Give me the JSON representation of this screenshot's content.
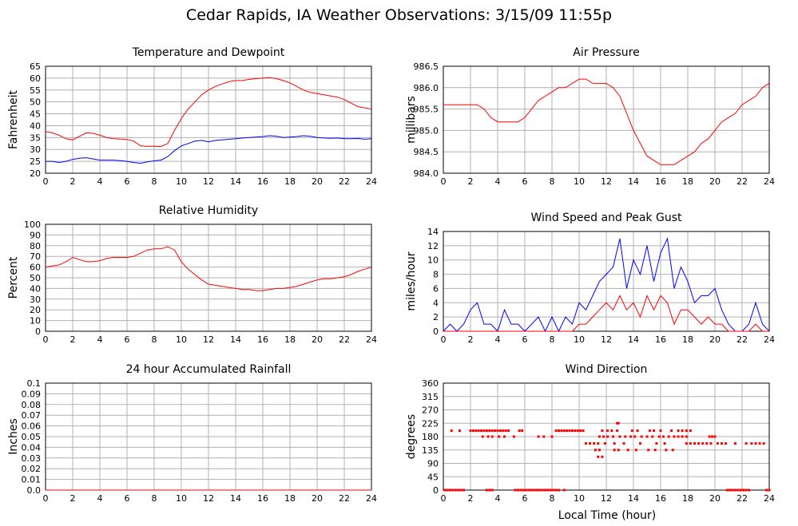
{
  "title": "Cedar Rapids, IA Weather Observations: 3/15/09 11:55p",
  "xlabel_bottom": "Local Time (hour)",
  "colors": {
    "red": "#ff0000",
    "blue": "#0000ff",
    "grid": "#b0b0b0",
    "frame": "#000000"
  },
  "chart_data": [
    {
      "type": "line",
      "title": "Temperature and Dewpoint",
      "xlabel": "",
      "ylabel": "Fahrenheit",
      "xlim": [
        0,
        24
      ],
      "ylim": [
        20,
        65
      ],
      "x_ticks": [
        "0",
        "2",
        "4",
        "6",
        "8",
        "10",
        "12",
        "14",
        "16",
        "18",
        "20",
        "22",
        "24"
      ],
      "y_ticks": [
        "20",
        "25",
        "30",
        "35",
        "40",
        "45",
        "50",
        "55",
        "60",
        "65"
      ],
      "grid": true,
      "series": [
        {
          "color": "red",
          "x": [
            0,
            0.5,
            1,
            1.5,
            2,
            2.5,
            3,
            3.5,
            4,
            4.5,
            5,
            5.5,
            6,
            6.5,
            7,
            7.5,
            8,
            8.5,
            9,
            9.5,
            10,
            10.5,
            11,
            11.5,
            12,
            12.5,
            13,
            13.5,
            14,
            14.5,
            15,
            15.5,
            16,
            16.5,
            17,
            17.5,
            18,
            18.5,
            19,
            19.5,
            20,
            20.5,
            21,
            21.5,
            22,
            22.5,
            23,
            23.5,
            24
          ],
          "values": [
            37.5,
            37,
            36,
            34.5,
            34,
            35.5,
            37,
            36.8,
            36,
            35,
            34.5,
            34.4,
            34.2,
            33.5,
            31.5,
            31.3,
            31.4,
            31.2,
            32.5,
            38,
            43,
            47,
            50,
            53,
            55,
            56.5,
            57.5,
            58.5,
            59,
            59,
            59.5,
            59.8,
            60,
            60.2,
            59.8,
            59,
            58,
            56.5,
            55,
            54,
            53.5,
            53,
            52.5,
            52,
            51,
            49.5,
            48,
            47.5,
            47
          ]
        },
        {
          "color": "blue",
          "x": [
            0,
            0.5,
            1,
            1.5,
            2,
            2.5,
            3,
            3.5,
            4,
            4.5,
            5,
            5.5,
            6,
            6.5,
            7,
            7.5,
            8,
            8.5,
            9,
            9.5,
            10,
            10.5,
            11,
            11.5,
            12,
            12.5,
            13,
            13.5,
            14,
            14.5,
            15,
            15.5,
            16,
            16.5,
            17,
            17.5,
            18,
            18.5,
            19,
            19.5,
            20,
            20.5,
            21,
            21.5,
            22,
            22.5,
            23,
            23.5,
            24
          ],
          "values": [
            25,
            25,
            24.5,
            25,
            25.8,
            26.3,
            26.5,
            26,
            25.5,
            25.5,
            25.5,
            25.3,
            25,
            24.5,
            24.2,
            24.8,
            25.2,
            25.5,
            27,
            29.5,
            31.5,
            32.5,
            33.5,
            33.8,
            33.2,
            33.8,
            34,
            34.3,
            34.5,
            34.8,
            35,
            35.2,
            35.4,
            35.8,
            35.5,
            35,
            35.2,
            35.4,
            35.8,
            35.5,
            35,
            34.8,
            34.7,
            34.8,
            34.5,
            34.5,
            34.6,
            34.3,
            34.5
          ]
        }
      ]
    },
    {
      "type": "line",
      "title": "Air Pressure",
      "xlabel": "",
      "ylabel": "millibars",
      "xlim": [
        0,
        24
      ],
      "ylim": [
        984.0,
        986.5
      ],
      "x_ticks": [
        "0",
        "2",
        "4",
        "6",
        "8",
        "10",
        "12",
        "14",
        "16",
        "18",
        "20",
        "22",
        "24"
      ],
      "y_ticks": [
        "984.0",
        "984.5",
        "985.0",
        "985.5",
        "986.0",
        "986.5"
      ],
      "grid": true,
      "series": [
        {
          "color": "red",
          "x": [
            0,
            0.5,
            1,
            1.5,
            2,
            2.5,
            3,
            3.5,
            4,
            4.5,
            5,
            5.5,
            6,
            6.5,
            7,
            7.5,
            8,
            8.5,
            9,
            9.5,
            10,
            10.5,
            11,
            11.5,
            12,
            12.5,
            13,
            13.5,
            14,
            14.5,
            15,
            15.5,
            16,
            16.5,
            17,
            17.5,
            18,
            18.5,
            19,
            19.5,
            20,
            20.5,
            21,
            21.5,
            22,
            22.5,
            23,
            23.5,
            24
          ],
          "values": [
            985.6,
            985.6,
            985.6,
            985.6,
            985.6,
            985.6,
            985.5,
            985.3,
            985.2,
            985.2,
            985.2,
            985.2,
            985.3,
            985.5,
            985.7,
            985.8,
            985.9,
            986.0,
            986.0,
            986.1,
            986.2,
            986.2,
            986.1,
            986.1,
            986.1,
            986.0,
            985.8,
            985.4,
            985.0,
            984.7,
            984.4,
            984.3,
            984.2,
            984.2,
            984.2,
            984.3,
            984.4,
            984.5,
            984.7,
            984.8,
            985.0,
            985.2,
            985.3,
            985.4,
            985.6,
            985.7,
            985.8,
            986.0,
            986.1
          ]
        }
      ]
    },
    {
      "type": "line",
      "title": "Relative Humidity",
      "xlabel": "",
      "ylabel": "Percent",
      "xlim": [
        0,
        24
      ],
      "ylim": [
        0,
        100
      ],
      "x_ticks": [
        "0",
        "2",
        "4",
        "6",
        "8",
        "10",
        "12",
        "14",
        "16",
        "18",
        "20",
        "22",
        "24"
      ],
      "y_ticks": [
        "0",
        "10",
        "20",
        "30",
        "40",
        "50",
        "60",
        "70",
        "80",
        "90",
        "100"
      ],
      "grid": true,
      "series": [
        {
          "color": "red",
          "x": [
            0,
            0.5,
            1,
            1.5,
            2,
            2.5,
            3,
            3.5,
            4,
            4.5,
            5,
            5.5,
            6,
            6.5,
            7,
            7.5,
            8,
            8.5,
            9,
            9.5,
            10,
            10.5,
            11,
            11.5,
            12,
            12.5,
            13,
            13.5,
            14,
            14.5,
            15,
            15.5,
            16,
            16.5,
            17,
            17.5,
            18,
            18.5,
            19,
            19.5,
            20,
            20.5,
            21,
            21.5,
            22,
            22.5,
            23,
            23.5,
            24
          ],
          "values": [
            60,
            61,
            62,
            65,
            69,
            67,
            65,
            65,
            66,
            68,
            69,
            69,
            69,
            70,
            73,
            76,
            77,
            77,
            79,
            76,
            65,
            58,
            53,
            48,
            44,
            43,
            42,
            41,
            40,
            39,
            39,
            38,
            38,
            39,
            40,
            40,
            41,
            42,
            44,
            46,
            48,
            49,
            49,
            50,
            51,
            53,
            56,
            58,
            60
          ]
        }
      ]
    },
    {
      "type": "line",
      "title": "Wind Speed and Peak Gust",
      "xlabel": "",
      "ylabel": "miles/hour",
      "xlim": [
        0,
        24
      ],
      "ylim": [
        0,
        14
      ],
      "x_ticks": [
        "0",
        "2",
        "4",
        "6",
        "8",
        "10",
        "12",
        "14",
        "16",
        "18",
        "20",
        "22",
        "24"
      ],
      "y_ticks": [
        "0",
        "2",
        "4",
        "6",
        "8",
        "10",
        "12",
        "14"
      ],
      "grid": true,
      "series": [
        {
          "color": "blue",
          "x": [
            0,
            0.5,
            1,
            1.5,
            2,
            2.5,
            3,
            3.5,
            4,
            4.5,
            5,
            5.5,
            6,
            6.5,
            7,
            7.5,
            8,
            8.5,
            9,
            9.5,
            10,
            10.5,
            11,
            11.5,
            12,
            12.5,
            13,
            13.5,
            14,
            14.5,
            15,
            15.5,
            16,
            16.5,
            17,
            17.5,
            18,
            18.5,
            19,
            19.5,
            20,
            20.5,
            21,
            21.5,
            22,
            22.5,
            23,
            23.5,
            24
          ],
          "values": [
            0,
            1,
            0,
            1,
            3,
            4,
            1,
            1,
            0,
            3,
            1,
            1,
            0,
            1,
            2,
            0,
            2,
            0,
            2,
            1,
            4,
            3,
            5,
            7,
            8,
            9,
            13,
            6,
            10,
            8,
            12,
            7,
            11,
            13,
            6,
            9,
            7,
            4,
            5,
            5,
            6,
            3,
            1,
            0,
            0,
            1,
            4,
            1,
            0
          ]
        },
        {
          "color": "red",
          "x": [
            0,
            0.5,
            1,
            1.5,
            2,
            2.5,
            3,
            3.5,
            4,
            4.5,
            5,
            5.5,
            6,
            6.5,
            7,
            7.5,
            8,
            8.5,
            9,
            9.5,
            10,
            10.5,
            11,
            11.5,
            12,
            12.5,
            13,
            13.5,
            14,
            14.5,
            15,
            15.5,
            16,
            16.5,
            17,
            17.5,
            18,
            18.5,
            19,
            19.5,
            20,
            20.5,
            21,
            21.5,
            22,
            22.5,
            23,
            23.5,
            24
          ],
          "values": [
            0,
            0,
            0,
            0,
            0,
            0,
            0,
            0,
            0,
            0,
            0,
            0,
            0,
            0,
            0,
            0,
            0,
            0,
            0,
            0,
            1,
            1,
            2,
            3,
            4,
            3,
            5,
            3,
            4,
            2,
            5,
            3,
            5,
            4,
            1,
            3,
            3,
            2,
            1,
            2,
            1,
            1,
            0,
            0,
            0,
            0,
            1,
            0,
            0
          ]
        }
      ]
    },
    {
      "type": "line",
      "title": "24 hour Accumulated Rainfall",
      "xlabel": "",
      "ylabel": "Inches",
      "xlim": [
        0,
        24
      ],
      "ylim": [
        0,
        0.1
      ],
      "x_ticks": [
        "0",
        "2",
        "4",
        "6",
        "8",
        "10",
        "12",
        "14",
        "16",
        "18",
        "20",
        "22",
        "24"
      ],
      "y_ticks": [
        "0.0",
        "0.01",
        "0.02",
        "0.03",
        "0.04",
        "0.05",
        "0.06",
        "0.07",
        "0.08",
        "0.09",
        "0.1"
      ],
      "grid": true,
      "series": [
        {
          "color": "red",
          "x": [
            0,
            24
          ],
          "values": [
            0,
            0
          ]
        }
      ]
    },
    {
      "type": "scatter",
      "title": "Wind Direction",
      "xlabel": "Local Time (hour)",
      "ylabel": "degrees",
      "xlim": [
        0,
        24
      ],
      "ylim": [
        0,
        360
      ],
      "x_ticks": [
        "0",
        "2",
        "4",
        "6",
        "8",
        "10",
        "12",
        "14",
        "16",
        "18",
        "20",
        "22",
        "24"
      ],
      "y_ticks": [
        "0",
        "45",
        "90",
        "135",
        "180",
        "225",
        "270",
        "315",
        "360"
      ],
      "grid": true,
      "series": [
        {
          "color": "red",
          "x": [
            0.1,
            0.3,
            0.5,
            0.7,
            0.9,
            1.1,
            1.3,
            1.5,
            3.2,
            3.4,
            3.6,
            5.3,
            5.5,
            5.7,
            5.9,
            6.1,
            6.3,
            6.5,
            6.7,
            6.9,
            7.1,
            7.3,
            7.5,
            7.7,
            7.9,
            8.1,
            8.3,
            8.5,
            8.9,
            20.9,
            21.1,
            21.3,
            21.5,
            21.7,
            21.9,
            22.1,
            22.3,
            22.5,
            23.8,
            24.0,
            0.6,
            1.2,
            2.0,
            2.2,
            2.4,
            2.6,
            2.8,
            3.0,
            3.2,
            3.4,
            3.6,
            3.8,
            4.0,
            4.2,
            4.4,
            4.6,
            4.8,
            5.6,
            5.8,
            8.3,
            8.5,
            8.7,
            8.9,
            9.1,
            9.3,
            9.5,
            9.7,
            9.9,
            10.1,
            10.3,
            11.7,
            12.1,
            12.4,
            12.8,
            13.9,
            14.3,
            15.2,
            15.5,
            16.0,
            16.8,
            17.3,
            17.6,
            17.9,
            18.2,
            2.9,
            3.3,
            3.6,
            4.1,
            4.5,
            5.2,
            7.0,
            7.4,
            8.0,
            11.5,
            11.8,
            12.1,
            12.5,
            13.0,
            13.4,
            13.8,
            14.1,
            14.6,
            15.0,
            15.4,
            15.9,
            16.2,
            16.6,
            17.0,
            17.3,
            17.6,
            17.9,
            19.6,
            19.8,
            20.0,
            10.5,
            10.8,
            11.1,
            11.4,
            11.9,
            12.6,
            13.3,
            14.5,
            15.7,
            16.3,
            17.9,
            18.2,
            18.5,
            18.8,
            19.1,
            19.4,
            19.7,
            20.2,
            20.5,
            20.8,
            21.5,
            22.3,
            22.7,
            23.0,
            23.3,
            23.6,
            11.2,
            11.5,
            12.6,
            12.9,
            13.6,
            14.2,
            15.1,
            15.6,
            16.4,
            16.9,
            11.4,
            11.7,
            12.8,
            12.9
          ],
          "values": [
            0,
            0,
            0,
            0,
            0,
            0,
            0,
            0,
            0,
            0,
            0,
            0,
            0,
            0,
            0,
            0,
            0,
            0,
            0,
            0,
            0,
            0,
            0,
            0,
            0,
            0,
            0,
            0,
            0,
            0,
            0,
            0,
            0,
            0,
            0,
            0,
            0,
            0,
            0,
            0,
            200,
            200,
            200,
            200,
            200,
            200,
            200,
            200,
            200,
            200,
            200,
            200,
            200,
            200,
            200,
            200,
            200,
            200,
            200,
            200,
            200,
            200,
            200,
            200,
            200,
            200,
            200,
            200,
            200,
            200,
            200,
            200,
            200,
            200,
            200,
            200,
            200,
            200,
            200,
            200,
            200,
            200,
            200,
            200,
            180,
            180,
            180,
            180,
            180,
            180,
            180,
            180,
            180,
            180,
            180,
            180,
            180,
            180,
            180,
            180,
            180,
            180,
            180,
            180,
            180,
            180,
            180,
            180,
            180,
            180,
            180,
            180,
            180,
            180,
            157,
            157,
            157,
            157,
            157,
            157,
            157,
            157,
            157,
            157,
            157,
            157,
            157,
            157,
            157,
            157,
            157,
            157,
            157,
            157,
            157,
            157,
            157,
            157,
            157,
            157,
            135,
            135,
            135,
            135,
            135,
            135,
            135,
            135,
            135,
            135,
            112,
            112,
            225,
            225
          ]
        }
      ]
    }
  ]
}
